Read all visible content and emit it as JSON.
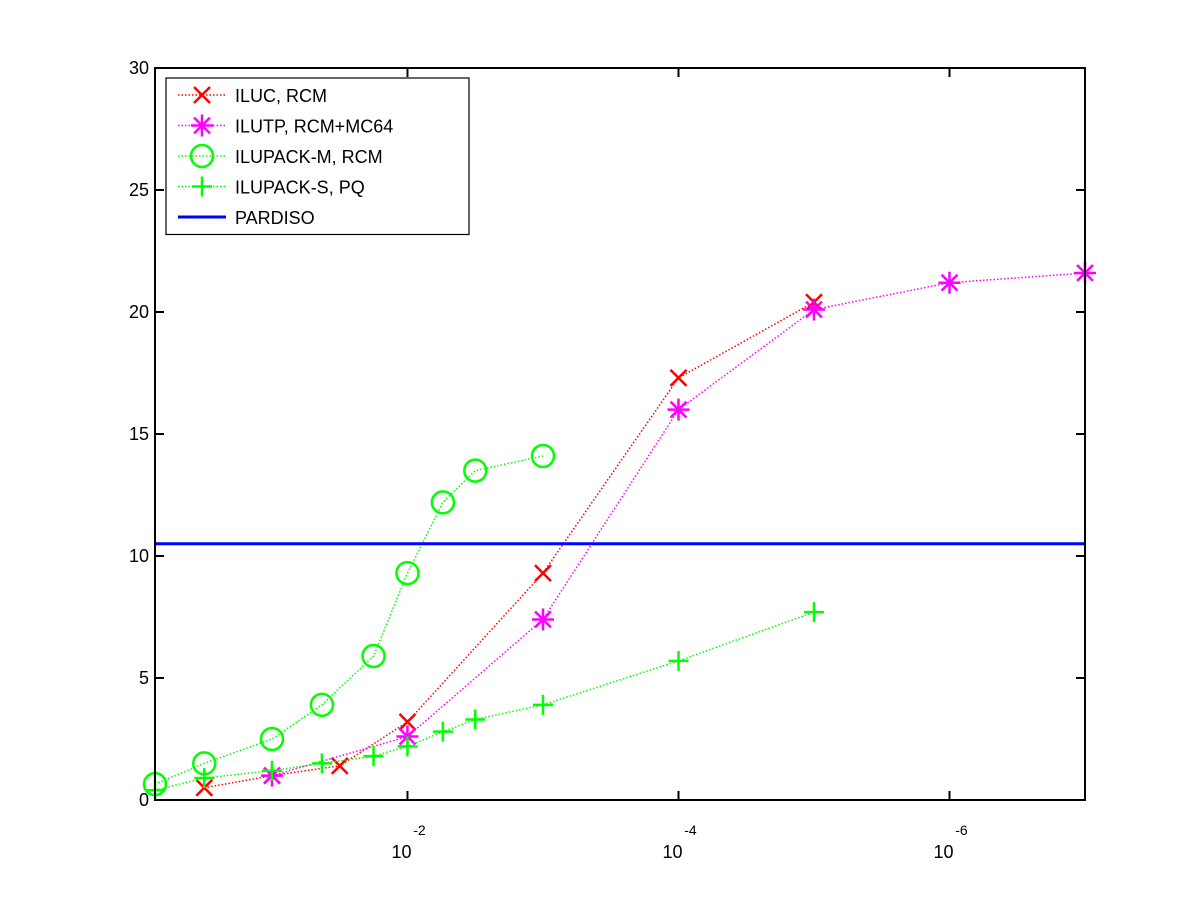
{
  "chart_data": {
    "type": "line",
    "title": "",
    "xlabel": "",
    "ylabel": "",
    "x_scale": "log-reversed",
    "xlim": [
      0.73,
      1e-07
    ],
    "ylim": [
      0,
      30
    ],
    "yticks": [
      0,
      5,
      10,
      15,
      20,
      25,
      30
    ],
    "xticks": [
      {
        "value": 0.01,
        "base": "10",
        "exp": "-2"
      },
      {
        "value": 0.0001,
        "base": "10",
        "exp": "-4"
      },
      {
        "value": 1e-06,
        "base": "10",
        "exp": "-6"
      }
    ],
    "grid": false,
    "legend_position": "top-left",
    "series": [
      {
        "name": "ILUC, RCM",
        "color": "#ff0000",
        "marker": "x",
        "style": "dotted",
        "points": [
          [
            0.316,
            0.5
          ],
          [
            0.1,
            1.0
          ],
          [
            0.0316,
            1.4
          ],
          [
            0.01,
            3.2
          ],
          [
            0.001,
            9.3
          ],
          [
            0.0001,
            17.3
          ],
          [
            1e-05,
            20.4
          ]
        ]
      },
      {
        "name": "ILUTP, RCM+MC64",
        "color": "#ff00ff",
        "marker": "asterisk",
        "style": "dotted",
        "points": [
          [
            0.1,
            1.0
          ],
          [
            0.01,
            2.6
          ],
          [
            0.001,
            7.4
          ],
          [
            0.0001,
            16.0
          ],
          [
            1e-05,
            20.1
          ],
          [
            1e-06,
            21.2
          ],
          [
            1e-07,
            21.6
          ]
        ]
      },
      {
        "name": "ILUPACK-M, RCM",
        "color": "#00ff00",
        "marker": "circle",
        "style": "dotted",
        "points": [
          [
            0.73,
            0.65
          ],
          [
            0.316,
            1.5
          ],
          [
            0.1,
            2.5
          ],
          [
            0.0428,
            3.9
          ],
          [
            0.0178,
            5.9
          ],
          [
            0.01,
            9.3
          ],
          [
            0.00548,
            12.2
          ],
          [
            0.00316,
            13.5
          ],
          [
            0.001,
            14.1
          ]
        ]
      },
      {
        "name": "ILUPACK-S, PQ",
        "color": "#00ff00",
        "marker": "plus",
        "style": "dotted",
        "points": [
          [
            0.73,
            0.4
          ],
          [
            0.316,
            0.9
          ],
          [
            0.1,
            1.2
          ],
          [
            0.0428,
            1.5
          ],
          [
            0.0178,
            1.8
          ],
          [
            0.01,
            2.2
          ],
          [
            0.00548,
            2.8
          ],
          [
            0.00316,
            3.3
          ],
          [
            0.001,
            3.9
          ],
          [
            0.0001,
            5.7
          ],
          [
            1e-05,
            7.7
          ]
        ]
      },
      {
        "name": "PARDISO",
        "color": "#0000ff",
        "marker": "none",
        "style": "solid",
        "points": [
          [
            0.73,
            10.5
          ],
          [
            1e-07,
            10.5
          ]
        ]
      }
    ]
  }
}
